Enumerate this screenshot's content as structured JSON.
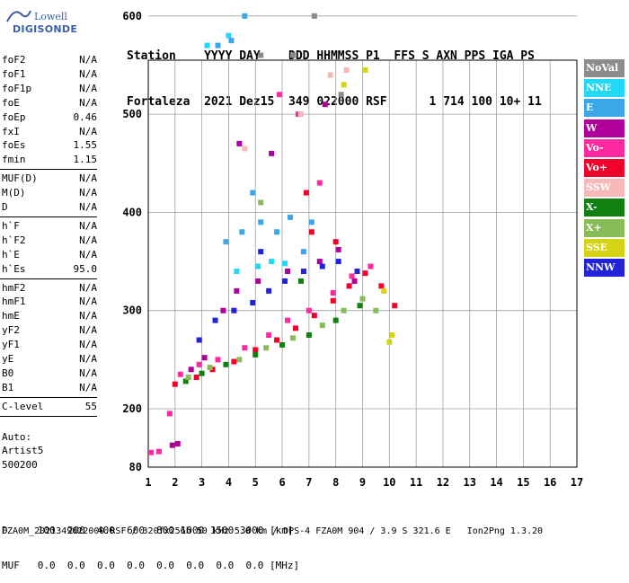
{
  "logo": {
    "line1": "Lowell",
    "line2": "DIGISONDE"
  },
  "header": {
    "line1": "Station    YYYY DAY    DDD HHMMSS P1  FFS S AXN PPS IGA PS",
    "line2": "Fortaleza  2021 Dez15  349 022000 RSF      1 714 100 10+ 11"
  },
  "params": {
    "group1": [
      {
        "name": "foF2",
        "value": "N/A"
      },
      {
        "name": "foF1",
        "value": "N/A"
      },
      {
        "name": "foF1p",
        "value": "N/A"
      },
      {
        "name": "foE",
        "value": "N/A"
      },
      {
        "name": "foEp",
        "value": "0.46"
      },
      {
        "name": "fxI",
        "value": "N/A"
      },
      {
        "name": "foEs",
        "value": "1.55"
      },
      {
        "name": "fmin",
        "value": "1.15"
      }
    ],
    "group2": [
      {
        "name": "MUF(D)",
        "value": "N/A"
      },
      {
        "name": "M(D)",
        "value": "N/A"
      },
      {
        "name": "D",
        "value": "N/A"
      }
    ],
    "group3": [
      {
        "name": "h`F",
        "value": "N/A"
      },
      {
        "name": "h`F2",
        "value": "N/A"
      },
      {
        "name": "h`E",
        "value": "N/A"
      },
      {
        "name": "h`Es",
        "value": "95.0"
      }
    ],
    "group4": [
      {
        "name": "hmF2",
        "value": "N/A"
      },
      {
        "name": "hmF1",
        "value": "N/A"
      },
      {
        "name": "hmE",
        "value": "N/A"
      },
      {
        "name": "yF2",
        "value": "N/A"
      },
      {
        "name": "yF1",
        "value": "N/A"
      },
      {
        "name": "yE",
        "value": "N/A"
      },
      {
        "name": "B0",
        "value": "N/A"
      },
      {
        "name": "B1",
        "value": "N/A"
      }
    ],
    "group5": [
      {
        "name": "C-level",
        "value": "55"
      }
    ],
    "auto": [
      "Auto:",
      "Artist5",
      "500200"
    ]
  },
  "legend": [
    {
      "label": "NoVal",
      "color": "#8c8c8c"
    },
    {
      "label": "NNE",
      "color": "#22d8f5"
    },
    {
      "label": "E",
      "color": "#3aa8e8"
    },
    {
      "label": "W",
      "color": "#b0009c"
    },
    {
      "label": "Vo-",
      "color": "#ff2aa0"
    },
    {
      "label": "Vo+",
      "color": "#f2002c"
    },
    {
      "label": "SSW",
      "color": "#f8b8b8"
    },
    {
      "label": "X-",
      "color": "#108010"
    },
    {
      "label": "X+",
      "color": "#88bc58"
    },
    {
      "label": "SSE",
      "color": "#d4d412"
    },
    {
      "label": "NNW",
      "color": "#2222d8"
    }
  ],
  "footer": {
    "line1": "D     100  200  400  600  800 1000 1500 3000 [km]",
    "line2": "MUF   0.0  0.0  0.0  0.0  0.0  0.0  0.0  0.0 [MHz]",
    "fileline": "FZA0M_2021349022000.RSF / 320fx256h 50 kHz 5.0 km / DPS-4 FZA0M 904 / 3.9 S 321.6 E   Ion2Png 1.3.20"
  },
  "chart_data": {
    "type": "scatter",
    "title": "",
    "xlabel": "",
    "ylabel": "",
    "xlim": [
      1,
      17
    ],
    "ylim": [
      80,
      900
    ],
    "x_ticks": [
      "1",
      "2",
      "3",
      "4",
      "5",
      "6",
      "7",
      "8",
      "9",
      "10",
      "11",
      "12",
      "13",
      "14",
      "15",
      "16",
      "17"
    ],
    "y_ticks": [
      "80",
      "200",
      "300",
      "400",
      "500",
      "600",
      "700",
      "800",
      "900"
    ],
    "grid": true,
    "legend_position": "right",
    "series": [
      {
        "name": "NoVal",
        "points": [
          [
            5.6,
            890
          ],
          [
            6.9,
            860
          ],
          [
            5.2,
            560
          ],
          [
            6.4,
            560
          ],
          [
            7.2,
            600
          ],
          [
            8.2,
            520
          ]
        ]
      },
      {
        "name": "NNE",
        "points": [
          [
            3.8,
            745
          ],
          [
            4.2,
            750
          ],
          [
            4.7,
            785
          ],
          [
            5.5,
            815
          ],
          [
            6.8,
            840
          ],
          [
            7.2,
            865
          ],
          [
            3.2,
            570
          ],
          [
            4.0,
            580
          ],
          [
            4.3,
            340
          ],
          [
            5.1,
            345
          ],
          [
            5.6,
            350
          ],
          [
            6.1,
            348
          ]
        ]
      },
      {
        "name": "E",
        "points": [
          [
            3.6,
            570
          ],
          [
            4.1,
            575
          ],
          [
            4.6,
            600
          ],
          [
            3.9,
            370
          ],
          [
            4.5,
            380
          ],
          [
            5.2,
            390
          ],
          [
            5.8,
            380
          ],
          [
            6.3,
            395
          ],
          [
            7.1,
            390
          ],
          [
            6.8,
            360
          ],
          [
            4.9,
            420
          ]
        ]
      },
      {
        "name": "W",
        "points": [
          [
            1.9,
            125
          ],
          [
            2.1,
            128
          ],
          [
            2.6,
            240
          ],
          [
            3.1,
            252
          ],
          [
            4.3,
            320
          ],
          [
            5.1,
            330
          ],
          [
            6.2,
            340
          ],
          [
            7.4,
            350
          ],
          [
            8.1,
            362
          ],
          [
            8.7,
            330
          ],
          [
            5.6,
            460
          ],
          [
            4.4,
            470
          ],
          [
            7.6,
            510
          ],
          [
            3.8,
            300
          ]
        ]
      },
      {
        "name": "Vo-",
        "points": [
          [
            1.1,
            110
          ],
          [
            1.4,
            112
          ],
          [
            2.2,
            235
          ],
          [
            2.9,
            245
          ],
          [
            3.6,
            250
          ],
          [
            4.6,
            262
          ],
          [
            5.5,
            275
          ],
          [
            6.2,
            290
          ],
          [
            7.0,
            300
          ],
          [
            7.9,
            318
          ],
          [
            8.6,
            335
          ],
          [
            9.3,
            345
          ],
          [
            7.4,
            430
          ],
          [
            5.9,
            520
          ],
          [
            6.6,
            500
          ],
          [
            1.8,
            190
          ]
        ]
      },
      {
        "name": "Vo+",
        "points": [
          [
            2.0,
            225
          ],
          [
            2.8,
            232
          ],
          [
            3.4,
            240
          ],
          [
            4.2,
            248
          ],
          [
            5.0,
            260
          ],
          [
            5.8,
            270
          ],
          [
            6.5,
            282
          ],
          [
            7.2,
            295
          ],
          [
            7.9,
            310
          ],
          [
            8.5,
            325
          ],
          [
            9.1,
            338
          ],
          [
            9.7,
            325
          ],
          [
            10.2,
            305
          ],
          [
            7.1,
            380
          ],
          [
            8.0,
            370
          ],
          [
            6.9,
            420
          ]
        ]
      },
      {
        "name": "SSW",
        "points": [
          [
            5.8,
            890
          ],
          [
            4.6,
            465
          ],
          [
            6.7,
            500
          ],
          [
            7.8,
            540
          ],
          [
            8.4,
            545
          ]
        ]
      },
      {
        "name": "X-",
        "points": [
          [
            2.4,
            228
          ],
          [
            3.0,
            236
          ],
          [
            3.9,
            245
          ],
          [
            5.0,
            255
          ],
          [
            6.0,
            265
          ],
          [
            7.0,
            275
          ],
          [
            8.0,
            290
          ],
          [
            8.9,
            305
          ],
          [
            6.7,
            330
          ]
        ]
      },
      {
        "name": "X+",
        "points": [
          [
            2.5,
            232
          ],
          [
            3.3,
            242
          ],
          [
            4.4,
            250
          ],
          [
            5.4,
            262
          ],
          [
            6.4,
            272
          ],
          [
            7.5,
            285
          ],
          [
            8.3,
            300
          ],
          [
            9.0,
            312
          ],
          [
            9.5,
            300
          ],
          [
            5.2,
            410
          ]
        ]
      },
      {
        "name": "SSE",
        "points": [
          [
            3.9,
            745
          ],
          [
            4.4,
            755
          ],
          [
            5.2,
            765
          ],
          [
            5.6,
            775
          ],
          [
            8.0,
            850
          ],
          [
            7.6,
            835
          ],
          [
            8.3,
            530
          ],
          [
            9.1,
            545
          ],
          [
            9.8,
            320
          ],
          [
            10.0,
            268
          ],
          [
            10.1,
            275
          ]
        ]
      },
      {
        "name": "NNW",
        "points": [
          [
            2.9,
            270
          ],
          [
            3.5,
            290
          ],
          [
            4.2,
            300
          ],
          [
            4.9,
            308
          ],
          [
            5.5,
            320
          ],
          [
            6.1,
            330
          ],
          [
            6.8,
            340
          ],
          [
            7.5,
            345
          ],
          [
            8.1,
            350
          ],
          [
            8.8,
            340
          ],
          [
            5.2,
            360
          ]
        ]
      }
    ]
  }
}
